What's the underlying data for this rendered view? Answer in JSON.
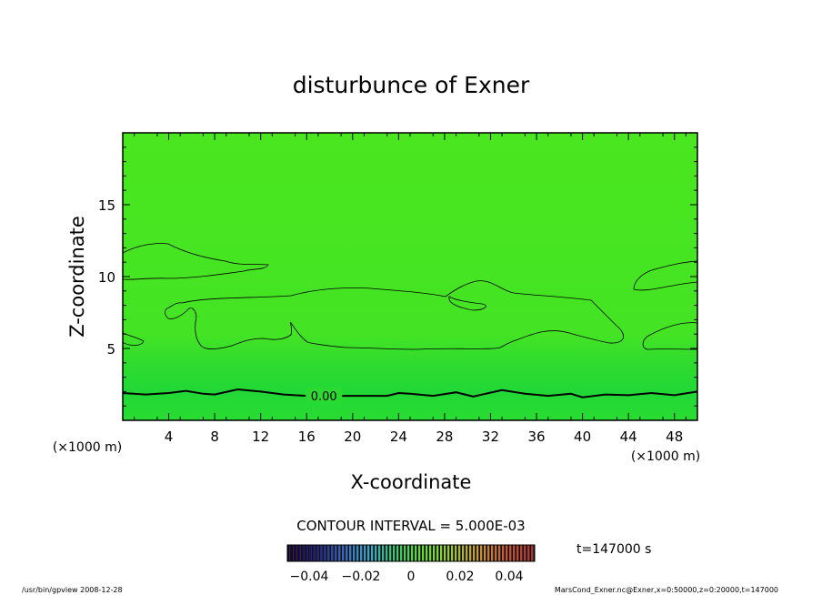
{
  "chart_data": {
    "type": "contour",
    "title": "disturbunce of Exner",
    "xlabel": "X-coordinate",
    "ylabel": "Z-coordinate",
    "x_unit": "(×1000 m)",
    "y_unit": "(×1000 m)",
    "xlim": [
      0,
      50
    ],
    "ylim": [
      0,
      20
    ],
    "x_ticks": [
      4,
      8,
      12,
      16,
      20,
      24,
      28,
      32,
      36,
      40,
      44,
      48
    ],
    "y_ticks": [
      5,
      10,
      15
    ],
    "contour_interval_text": "CONTOUR INTERVAL = 5.000E-03",
    "zero_contour_label": "0.00",
    "zero_contour_z": [
      [
        0,
        1.9
      ],
      [
        2,
        1.8
      ],
      [
        4,
        1.9
      ],
      [
        5.5,
        2.05
      ],
      [
        7,
        1.85
      ],
      [
        8,
        1.8
      ],
      [
        10,
        2.15
      ],
      [
        12,
        2.0
      ],
      [
        14,
        1.8
      ],
      [
        16,
        1.7
      ],
      [
        23,
        1.7
      ],
      [
        24,
        1.9
      ],
      [
        25,
        1.85
      ],
      [
        27,
        1.7
      ],
      [
        29,
        1.95
      ],
      [
        30.5,
        1.65
      ],
      [
        33,
        2.1
      ],
      [
        35,
        1.85
      ],
      [
        37,
        1.7
      ],
      [
        39,
        1.85
      ],
      [
        40,
        1.6
      ],
      [
        42,
        1.8
      ],
      [
        44,
        1.75
      ],
      [
        46,
        1.9
      ],
      [
        48,
        1.75
      ],
      [
        50,
        2.0
      ]
    ],
    "colorbar": {
      "ticks": [
        "-0.04",
        "-0.02",
        "0",
        "0.02",
        "0.04"
      ],
      "colors": [
        "#1a0033",
        "#1a1a80",
        "#3366cc",
        "#33aacc",
        "#33cc66",
        "#66dd33",
        "#99cc33",
        "#cc9933",
        "#cc5533",
        "#b03030"
      ]
    },
    "time_label": "t=147000 s",
    "colors": {
      "background_field": "#44e622",
      "lower_field": "#22d633",
      "line": "#000000"
    }
  },
  "footer": {
    "left": "/usr/bin/gpview   2008-12-28",
    "right": "MarsCond_Exner.nc@Exner,x=0:50000,z=0:20000,t=147000"
  }
}
